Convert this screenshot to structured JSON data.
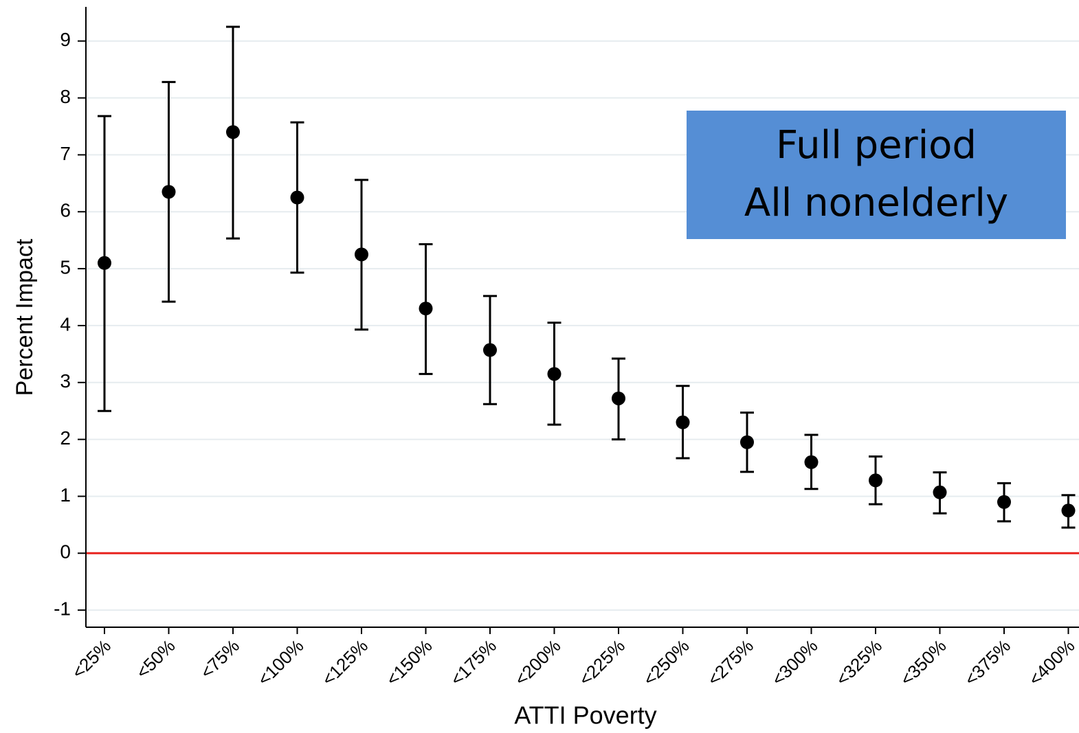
{
  "chart_data": {
    "type": "errorbar",
    "y_label": "Percent Impact",
    "x_label": "ATTI Poverty",
    "annotation": [
      "Full period",
      "All nonelderly"
    ],
    "annotation_color": "#558ed5",
    "categories": [
      "<25%",
      "<50%",
      "<75%",
      "<100%",
      "<125%",
      "<150%",
      "<175%",
      "<200%",
      "<225%",
      "<250%",
      "<275%",
      "<300%",
      "<325%",
      "<350%",
      "<375%",
      "<400%"
    ],
    "series": [
      {
        "color": "#000000",
        "values": [
          5.1,
          6.35,
          7.4,
          6.25,
          5.25,
          4.3,
          3.57,
          3.15,
          2.72,
          2.3,
          1.95,
          1.6,
          1.28,
          1.07,
          0.9,
          0.75
        ],
        "lower": [
          2.5,
          4.42,
          5.53,
          4.93,
          3.93,
          3.15,
          2.62,
          2.26,
          2.0,
          1.67,
          1.43,
          1.13,
          0.86,
          0.7,
          0.56,
          0.45
        ],
        "upper": [
          7.68,
          8.28,
          9.25,
          7.57,
          6.56,
          5.43,
          4.52,
          4.05,
          3.42,
          2.94,
          2.47,
          2.08,
          1.7,
          1.42,
          1.23,
          1.02
        ]
      }
    ],
    "ylim": [
      -1.3,
      9.6
    ],
    "yticks": [
      -1,
      0,
      1,
      2,
      3,
      4,
      5,
      6,
      7,
      8,
      9
    ],
    "grid": true,
    "reference_line": {
      "value": 0,
      "color": "#e8231f"
    }
  }
}
